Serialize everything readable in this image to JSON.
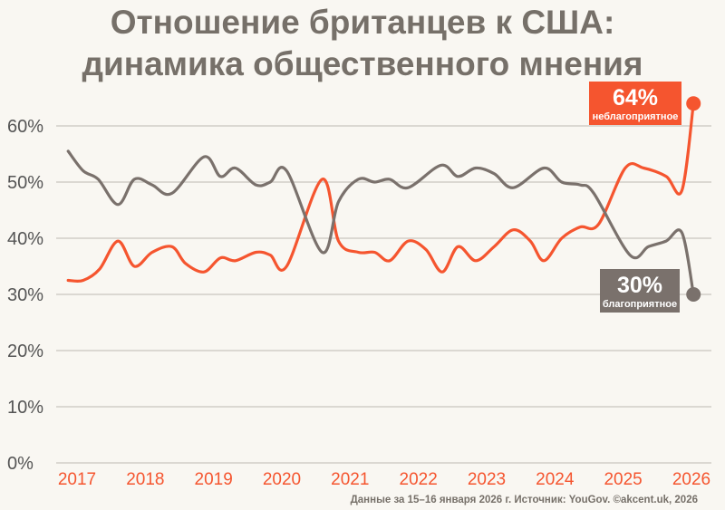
{
  "chart_data": {
    "type": "line",
    "title": "Отношение британцев к США: динамика общественного мнения",
    "title_lines": [
      "Отношение британцев к США:",
      "динамика общественного мнения"
    ],
    "xlabel": "",
    "ylabel": "",
    "ylim": [
      0,
      60
    ],
    "xlim": [
      2017,
      2026
    ],
    "yticks": [
      "0%",
      "10%",
      "20%",
      "30%",
      "40%",
      "50%",
      "60%"
    ],
    "ytick_values": [
      0,
      10,
      20,
      30,
      40,
      50,
      60
    ],
    "xticks": [
      "2017",
      "2018",
      "2019",
      "2020",
      "2021",
      "2022",
      "2023",
      "2024",
      "2025",
      "2026"
    ],
    "grid": true,
    "series": [
      {
        "name": "неблагоприятное",
        "color": "#f5552f",
        "x": [
          2016.87,
          2017.09,
          2017.33,
          2017.6,
          2017.84,
          2018.1,
          2018.39,
          2018.59,
          2018.86,
          2019.1,
          2019.32,
          2019.62,
          2019.83,
          2020.07,
          2020.59,
          2020.83,
          2021.12,
          2021.36,
          2021.58,
          2021.85,
          2022.11,
          2022.35,
          2022.58,
          2022.84,
          2023.11,
          2023.39,
          2023.64,
          2023.84,
          2024.1,
          2024.37,
          2024.64,
          2025.03,
          2025.3,
          2025.63,
          2025.86,
          2026.03
        ],
        "values": [
          32.5,
          32.5,
          34.5,
          39.5,
          35,
          37.5,
          38.5,
          35.5,
          34,
          36.5,
          36,
          37.5,
          37,
          35,
          50.5,
          39.5,
          37.5,
          37.5,
          36,
          39.5,
          38,
          34,
          38.5,
          36,
          38.5,
          41.5,
          39.5,
          36,
          40,
          42,
          42.5,
          52.5,
          52.5,
          51,
          48.5,
          64
        ],
        "end_label_value": "64%",
        "end_label_text": "неблагоприятное"
      },
      {
        "name": "благоприятное",
        "color": "#7a716c",
        "x": [
          2016.87,
          2017.09,
          2017.31,
          2017.6,
          2017.84,
          2018.1,
          2018.39,
          2018.86,
          2019.1,
          2019.32,
          2019.62,
          2019.83,
          2020.07,
          2020.59,
          2020.83,
          2021.12,
          2021.36,
          2021.58,
          2021.85,
          2022.33,
          2022.58,
          2022.84,
          2023.11,
          2023.39,
          2023.84,
          2024.1,
          2024.37,
          2024.57,
          2025.1,
          2025.37,
          2025.63,
          2025.86,
          2026.03
        ],
        "values": [
          55.5,
          52,
          50.5,
          46,
          50.5,
          49.5,
          48,
          54.5,
          51,
          52.5,
          49.5,
          50,
          52,
          37.5,
          46.5,
          50.5,
          50,
          50.5,
          49,
          53,
          51,
          52.5,
          51.5,
          49,
          52.5,
          50,
          49.5,
          48,
          37,
          38.5,
          39.5,
          41,
          30
        ],
        "end_label_value": "30%",
        "end_label_text": "благоприятное"
      }
    ]
  },
  "footer": "Данные за 15–16 января 2026 г. Источник: YouGov. ©akcent.uk, 2026"
}
